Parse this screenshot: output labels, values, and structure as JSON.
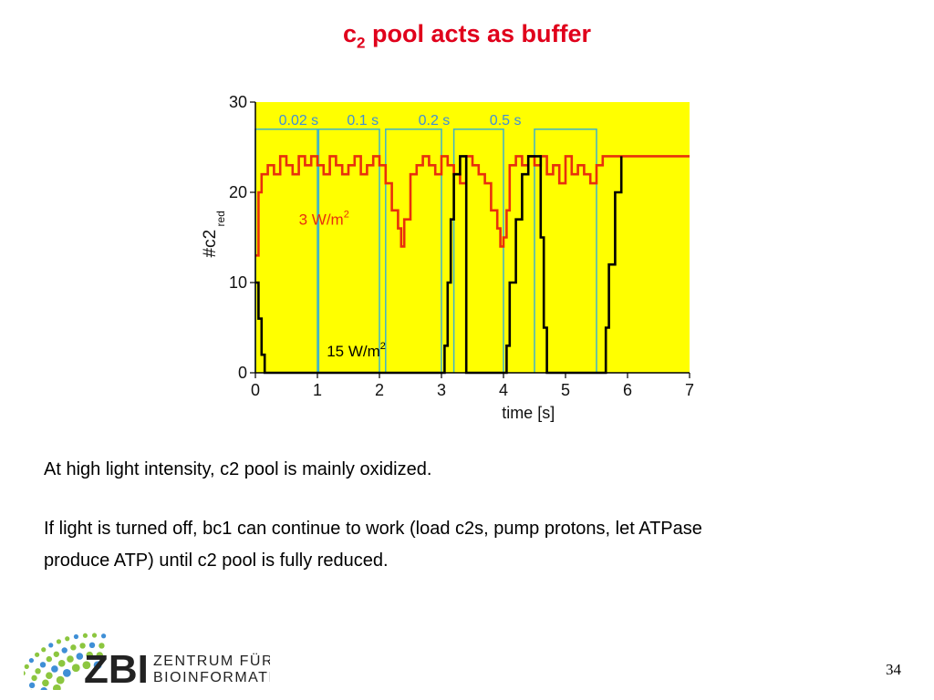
{
  "slide": {
    "title_main": "c",
    "title_sub": "2",
    "title_rest": " pool acts as buffer",
    "paragraph1": "At high light intensity, c2 pool is mainly oxidized.",
    "paragraph2_line1": "If light is turned off, bc1 can continue to work (load c2s, pump protons, let ATPase",
    "paragraph2_line2": "produce ATP) until c2 pool is fully reduced.",
    "page_number": "34"
  },
  "logo": {
    "word": "ZBI",
    "line1": "ZENTRUM FÜR",
    "line2": "BIOINFORMATIK",
    "colors": {
      "dots_green": "#8cc63f",
      "dots_blue": "#3f8fd6",
      "text": "#222222"
    }
  },
  "chart_data": {
    "type": "line",
    "xlabel": "time [s]",
    "ylabel": "#c2",
    "ylabel_sub": "red",
    "xlim": [
      0,
      7
    ],
    "ylim": [
      0,
      30
    ],
    "x_ticks": [
      0,
      1,
      2,
      3,
      4,
      5,
      6,
      7
    ],
    "y_ticks": [
      0,
      10,
      20,
      30
    ],
    "background": "#ffff00",
    "colors": {
      "red_series": "#e8300c",
      "black_series": "#000000",
      "light_pulse": "#3fb3c8",
      "pulse_labels": "#3f8fd6"
    },
    "pulses": [
      {
        "label": "0.02 s",
        "on": 0.0,
        "off": 1.0
      },
      {
        "label": "0.1 s",
        "on": 1.02,
        "off": 2.0
      },
      {
        "label": "0.2 s",
        "on": 2.1,
        "off": 3.0
      },
      {
        "label": "0.5 s",
        "on": 3.2,
        "off": 4.0
      },
      {
        "label": "",
        "on": 4.5,
        "off": 5.5
      }
    ],
    "pulse_high": 27,
    "annotations": [
      {
        "text": "3 W/m",
        "sup": "2",
        "x": 0.7,
        "y": 16.4,
        "color": "#e8300c"
      },
      {
        "text": "15 W/m",
        "sup": "2",
        "x": 1.15,
        "y": 1.8,
        "color": "#000000"
      }
    ],
    "series": [
      {
        "name": "3 W/m2",
        "x": [
          0,
          0.05,
          0.1,
          0.2,
          0.3,
          0.4,
          0.5,
          0.6,
          0.7,
          0.8,
          0.9,
          1.0,
          1.1,
          1.2,
          1.3,
          1.4,
          1.5,
          1.6,
          1.7,
          1.8,
          1.9,
          2.0,
          2.1,
          2.2,
          2.3,
          2.35,
          2.4,
          2.5,
          2.6,
          2.7,
          2.8,
          2.9,
          3.0,
          3.1,
          3.2,
          3.3,
          3.4,
          3.5,
          3.6,
          3.7,
          3.8,
          3.9,
          3.95,
          4.0,
          4.05,
          4.1,
          4.2,
          4.3,
          4.4,
          4.5,
          4.6,
          4.7,
          4.8,
          4.9,
          5.0,
          5.1,
          5.2,
          5.3,
          5.4,
          5.5,
          5.6,
          6.0,
          7.0
        ],
        "values": [
          13,
          20,
          22,
          23,
          22,
          24,
          23,
          22,
          24,
          23,
          24,
          23,
          22,
          24,
          23,
          22,
          23,
          24,
          22,
          23,
          24,
          23,
          21,
          18,
          16,
          14,
          17,
          22,
          23,
          24,
          23,
          22,
          24,
          23,
          22,
          21,
          24,
          23,
          22,
          21,
          18,
          16,
          14,
          15,
          18,
          23,
          24,
          23,
          24,
          23,
          24,
          22,
          23,
          21,
          24,
          22,
          23,
          22,
          21,
          23,
          24,
          24,
          24
        ]
      },
      {
        "name": "15 W/m2",
        "x": [
          0,
          0.05,
          0.1,
          0.15,
          0.2,
          2.15,
          2.2,
          3.0,
          3.05,
          3.1,
          3.15,
          3.2,
          3.3,
          3.4,
          3.5,
          3.6,
          4.0,
          4.05,
          4.1,
          4.2,
          4.3,
          4.4,
          4.5,
          4.6,
          4.65,
          4.7,
          5.6,
          5.65,
          5.7,
          5.8,
          5.9
        ],
        "values": [
          10,
          6,
          2,
          0,
          0,
          0,
          0,
          0,
          3,
          10,
          17,
          22,
          24,
          0,
          0,
          0,
          0,
          3,
          10,
          17,
          22,
          24,
          24,
          15,
          5,
          0,
          0,
          5,
          12,
          20,
          24
        ]
      }
    ]
  }
}
